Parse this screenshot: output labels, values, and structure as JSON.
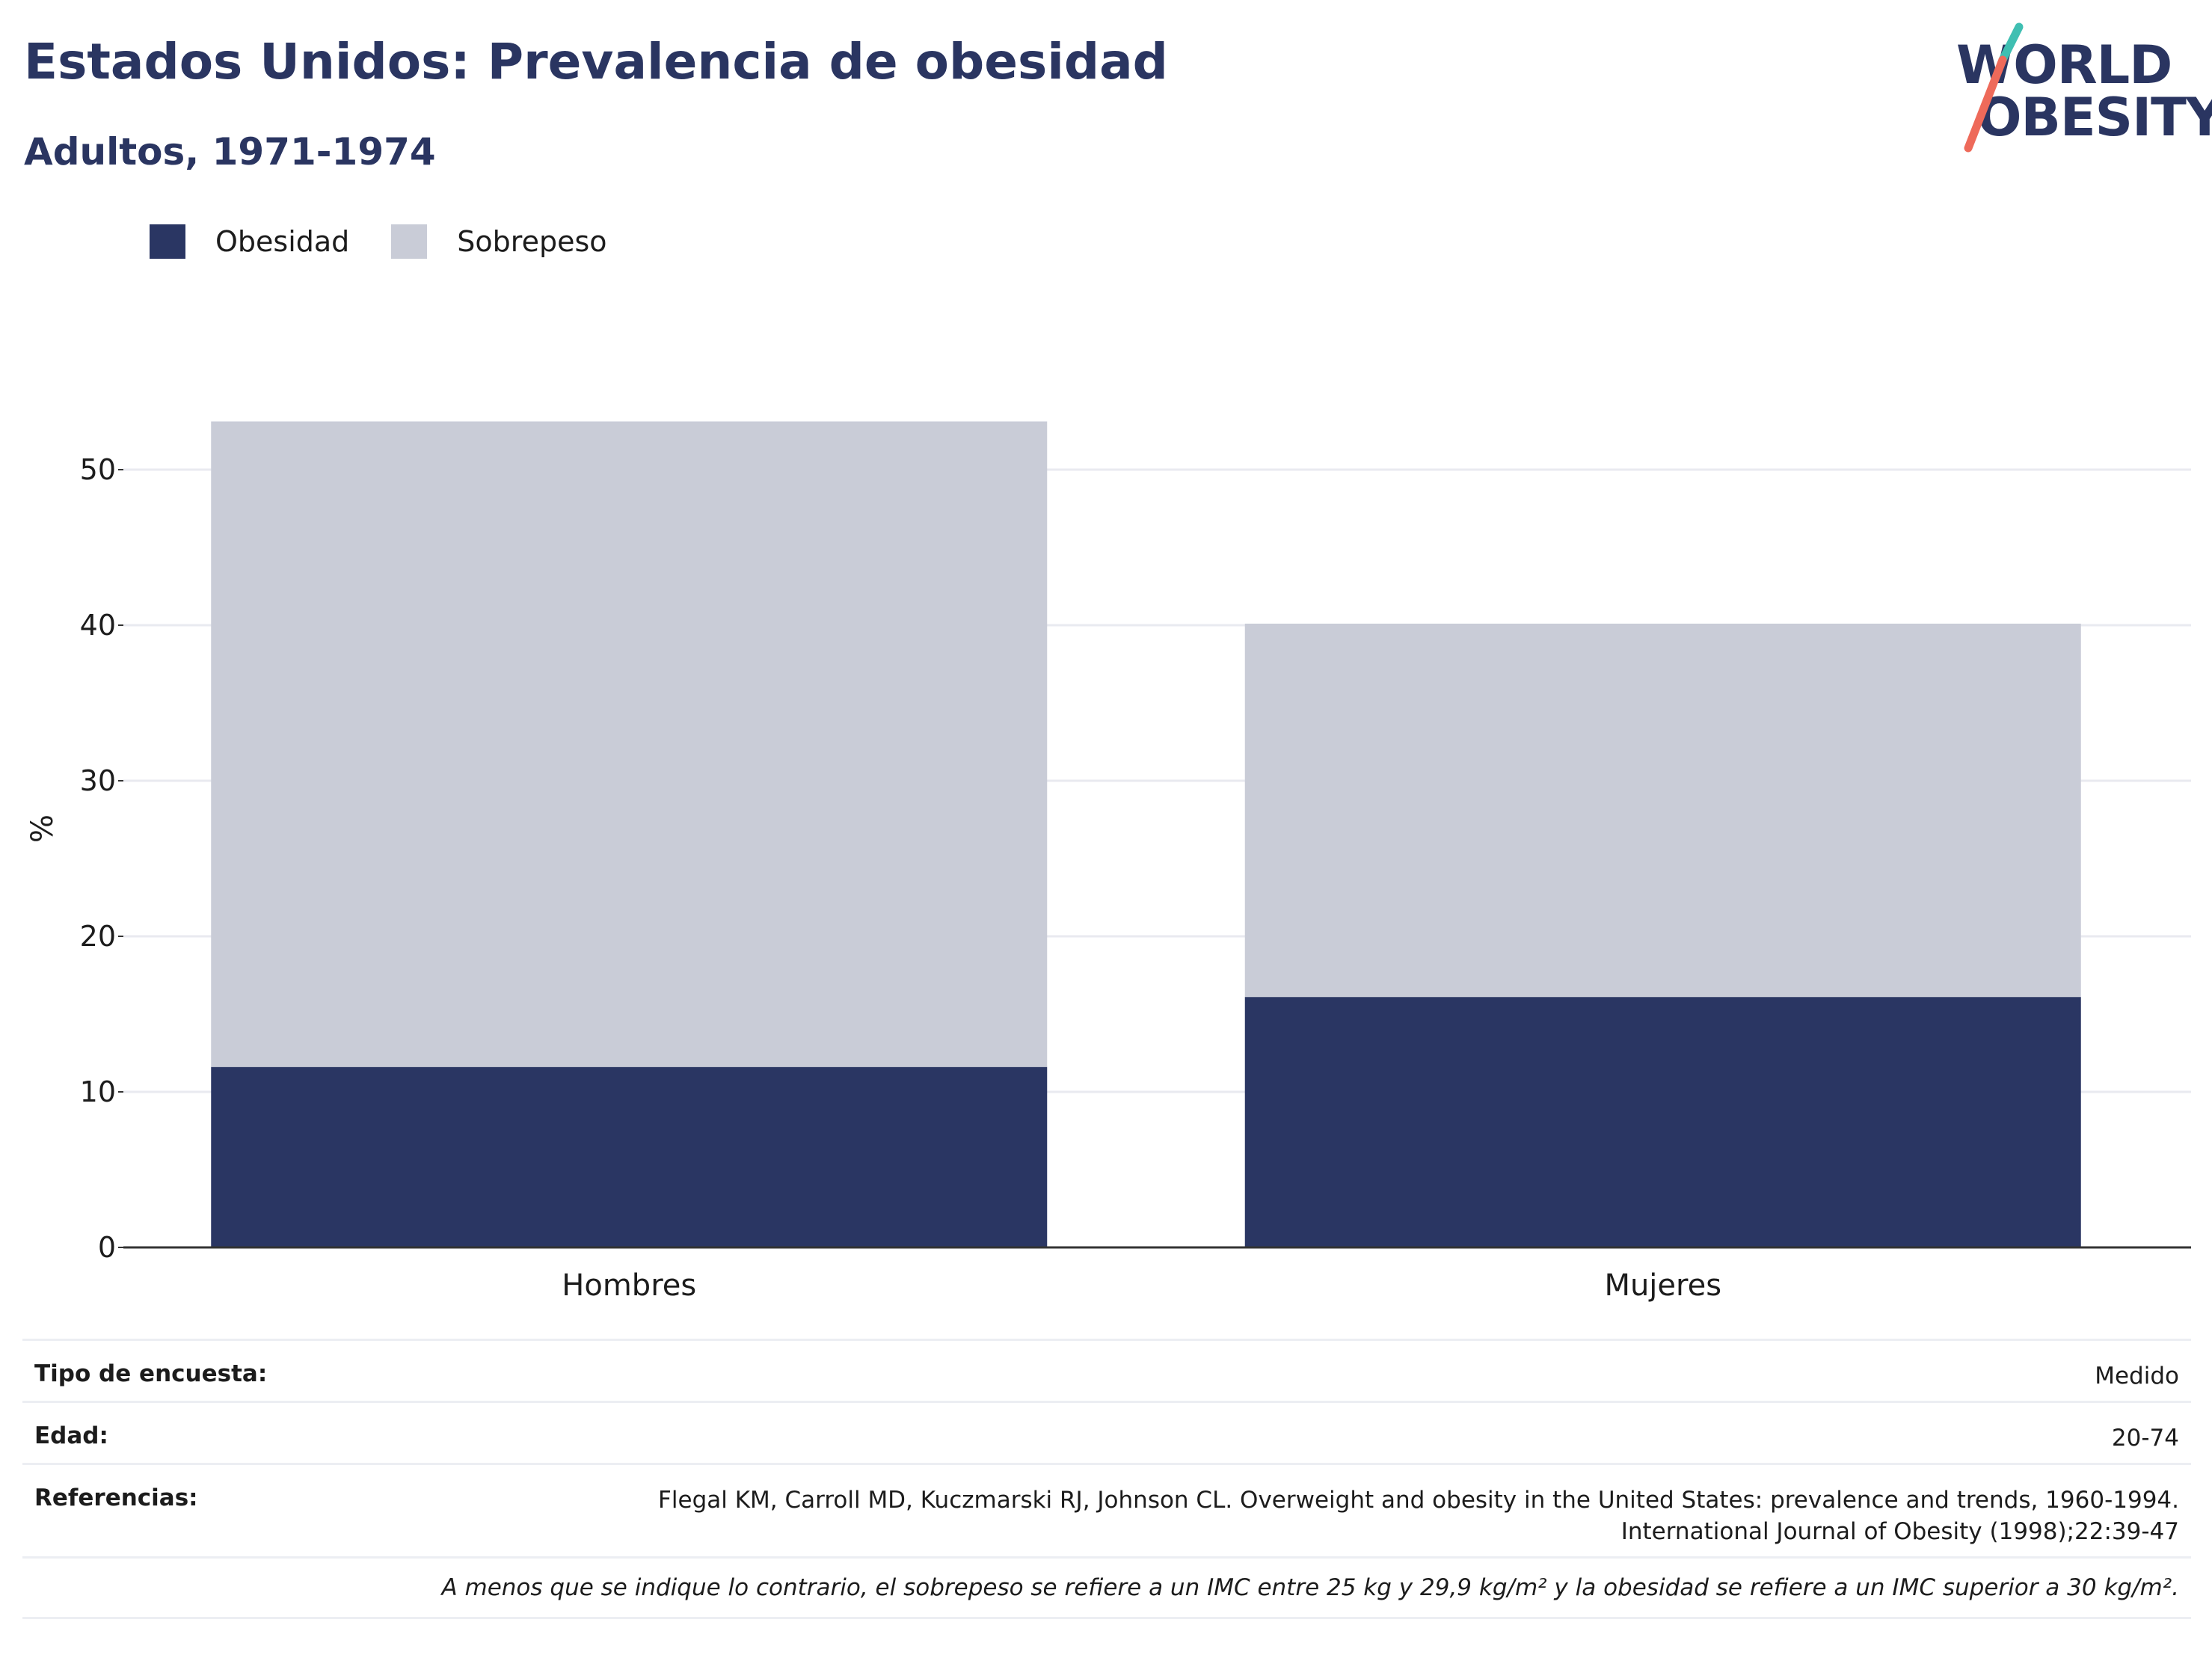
{
  "header": {
    "title": "Estados Unidos: Prevalencia de obesidad",
    "subtitle": "Adultos, 1971-1974"
  },
  "logo": {
    "line1": "WORLD",
    "line2": "OBESITY",
    "text_color": "#2a3561",
    "accent_teal": "#3fbfb2",
    "accent_coral": "#ee6a5a"
  },
  "legend": [
    {
      "label": "Obesidad",
      "color": "#2a3663"
    },
    {
      "label": "Sobrepeso",
      "color": "#c9ccd7"
    }
  ],
  "chart_data": {
    "type": "bar",
    "stacked": true,
    "categories": [
      "Hombres",
      "Mujeres"
    ],
    "series": [
      {
        "name": "Obesidad",
        "values": [
          11.6,
          16.1
        ],
        "color": "#2a3663"
      },
      {
        "name": "Sobrepeso",
        "values": [
          41.5,
          24.0
        ],
        "color": "#c9ccd7"
      }
    ],
    "ylabel": "%",
    "ylim": [
      0,
      55
    ],
    "yticks": [
      0,
      10,
      20,
      30,
      40,
      50
    ],
    "grid": true,
    "legend_position": "top-left"
  },
  "info": {
    "rows": [
      {
        "key": "Tipo de encuesta:",
        "value": "Medido"
      },
      {
        "key": "Edad:",
        "value": "20-74"
      },
      {
        "key": "Referencias:",
        "value_lines": [
          "Flegal KM, Carroll MD, Kuczmarski RJ, Johnson CL. Overweight and obesity in the United States: prevalence and trends, 1960-1994.",
          "International Journal of Obesity (1998);22:39-47"
        ]
      }
    ],
    "note": "A menos que se indique lo contrario, el sobrepeso se refiere a un IMC entre 25 kg y 29,9 kg/m² y la obesidad se refiere a un IMC superior a 30 kg/m²."
  }
}
